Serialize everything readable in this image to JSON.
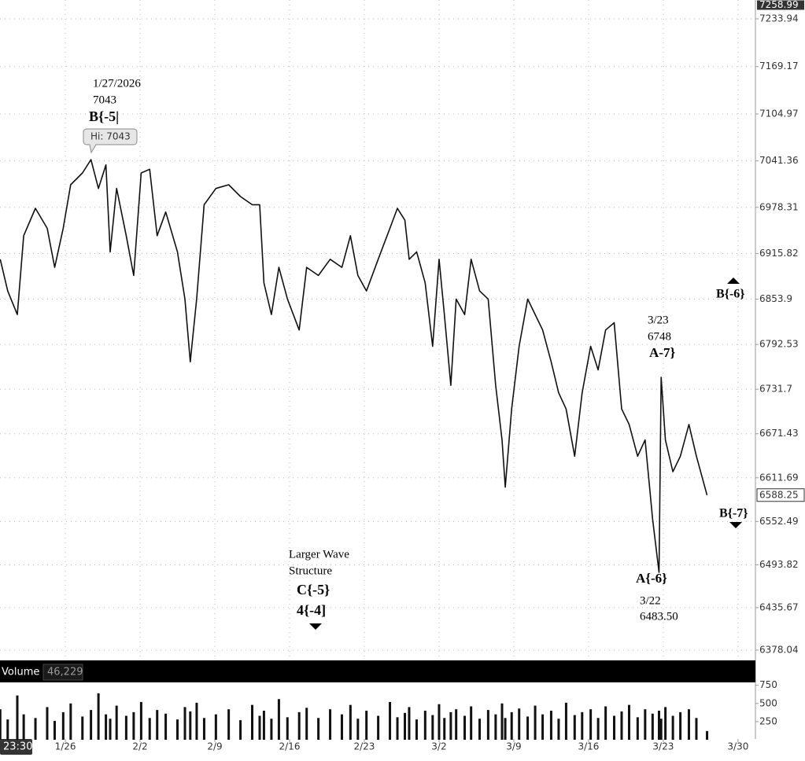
{
  "chart_data": {
    "type": "line",
    "color": "#111111",
    "grid": true,
    "x": [
      -6.1,
      -5.4,
      -4.5,
      -3.9,
      -2.8,
      -1.7,
      -1.0,
      -0.2,
      0.5,
      1.6,
      2.4,
      3.1,
      3.8,
      4.2,
      4.8,
      5.7,
      6.4,
      7.1,
      7.9,
      8.6,
      9.4,
      10.5,
      11.2,
      11.7,
      12.3,
      13.0,
      14.1,
      15.3,
      16.4,
      17.5,
      18.2,
      18.6,
      19.3,
      20.0,
      20.8,
      21.9,
      22.6,
      23.7,
      24.8,
      25.9,
      26.7,
      27.4,
      28.2,
      29.3,
      30.4,
      31.1,
      31.8,
      32.2,
      32.9,
      33.7,
      34.4,
      35.0,
      35.5,
      36.1,
      36.6,
      37.4,
      38.0,
      38.8,
      39.6,
      40.3,
      40.9,
      41.2,
      41.8,
      42.5,
      43.3,
      44.0,
      44.7,
      45.5,
      46.2,
      46.9,
      47.7,
      48.4,
      49.2,
      49.9,
      50.6,
      51.4,
      52.1,
      52.8,
      53.6,
      54.3,
      55.0,
      55.6,
      55.8,
      56.2,
      56.9,
      57.6,
      58.4,
      59.1,
      60.1
    ],
    "values": [
      6908,
      6865,
      6833,
      6940,
      6977,
      6950,
      6897,
      6950,
      7009,
      7025,
      7043,
      7004,
      7036,
      6918,
      7004,
      6940,
      6886,
      7025,
      7030,
      6940,
      6972,
      6918,
      6854,
      6769,
      6854,
      6982,
      7004,
      7009,
      6993,
      6982,
      6982,
      6876,
      6833,
      6897,
      6854,
      6812,
      6897,
      6886,
      6908,
      6897,
      6940,
      6886,
      6865,
      6908,
      6950,
      6977,
      6961,
      6908,
      6918,
      6876,
      6790,
      6908,
      6833,
      6737,
      6854,
      6833,
      6908,
      6865,
      6854,
      6737,
      6663,
      6599,
      6705,
      6790,
      6854,
      6833,
      6812,
      6769,
      6727,
      6705,
      6641,
      6727,
      6790,
      6758,
      6812,
      6822,
      6705,
      6684,
      6641,
      6663,
      6556,
      6483.5,
      6748,
      6663,
      6620,
      6641,
      6684,
      6641,
      6588.25
    ],
    "xlim": [
      -6.12,
      64.63
    ],
    "xticks": [
      {
        "value": 0,
        "label": "1/26"
      },
      {
        "value": 7,
        "label": "2/2"
      },
      {
        "value": 14,
        "label": "2/9"
      },
      {
        "value": 21,
        "label": "2/16"
      },
      {
        "value": 28,
        "label": "2/23"
      },
      {
        "value": 35,
        "label": "3/2"
      },
      {
        "value": 42,
        "label": "3/9"
      },
      {
        "value": 49,
        "label": "3/16"
      },
      {
        "value": 56,
        "label": "3/23"
      },
      {
        "value": 63,
        "label": "3/30"
      }
    ],
    "ylim": [
      6366.3,
      7259.5
    ],
    "yticks": [
      7233.94,
      7169.17,
      7104.97,
      7041.36,
      6978.31,
      6915.82,
      6853.9,
      6792.53,
      6731.7,
      6671.43,
      6611.69,
      6552.49,
      6493.82,
      6435.67,
      6378.04
    ],
    "top_price": 7258.99,
    "last_price": 6588.25,
    "time": "23:30",
    "annotations": {
      "peak_date": "1/27/2026",
      "peak_value": "7043",
      "peak_wave": "B{-5|",
      "peak_callout": "Hi: 7043",
      "structure_1": "Larger Wave",
      "structure_2": "Structure",
      "structure_wave_1": "C{-5}",
      "structure_wave_2": "4{-4]",
      "b6": "B{-6}",
      "a7_date": "3/23",
      "a7_value": "6748",
      "a7": "A-7}",
      "a6": "A{-6}",
      "a6_date": "3/22",
      "a6_value": "6483.50",
      "b7": "B{-7}"
    },
    "volume": {
      "label": "Volume",
      "last": "46,229",
      "ylim": [
        0,
        790
      ],
      "yticks": [
        250,
        500,
        750
      ],
      "values": [
        420,
        280,
        610,
        350,
        300,
        450,
        260,
        380,
        500,
        320,
        410,
        640,
        350,
        290,
        470,
        330,
        380,
        520,
        300,
        410,
        360,
        280,
        450,
        390,
        510,
        300,
        350,
        420,
        270,
        480,
        330,
        400,
        290,
        560,
        310,
        380,
        440,
        300,
        420,
        350,
        480,
        290,
        400,
        330,
        520,
        310,
        370,
        450,
        280,
        400,
        340,
        490,
        300,
        380,
        420,
        330,
        460,
        290,
        410,
        350,
        500,
        300,
        380,
        430,
        320,
        470,
        350,
        400,
        290,
        510,
        340,
        380,
        420,
        300,
        460,
        330,
        390,
        480,
        310,
        420,
        360,
        400,
        290,
        450,
        330,
        380,
        420,
        300,
        120
      ]
    }
  }
}
